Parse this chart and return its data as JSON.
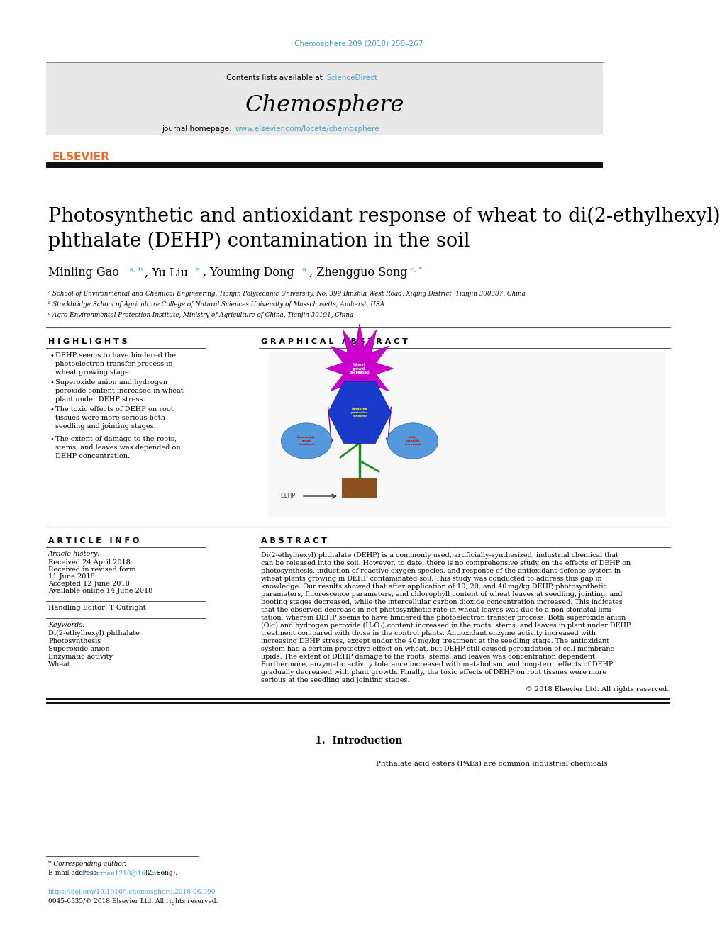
{
  "page_width": 9.92,
  "page_height": 13.23,
  "background_color": "#ffffff",
  "journal_ref": "Chemosphere 209 (2018) 258–267",
  "journal_ref_color": "#4ba3c3",
  "header_bg": "#e8e8e8",
  "header_text1": "Contents lists available at ",
  "header_sciencedirect": "ScienceDirect",
  "header_sciencedirect_color": "#4ba3c3",
  "journal_name": "Chemosphere",
  "journal_homepage_label": "journal homepage: ",
  "journal_url": "www.elsevier.com/locate/chemosphere",
  "journal_url_color": "#4ba3c3",
  "elsevier_color": "#f26524",
  "article_title": "Photosynthetic and antioxidant response of wheat to di(2-ethylhexyl)\nphthalate (DEHP) contamination in the soil",
  "affil_a": "ᵃ School of Environmental and Chemical Engineering, Tianjin Polytechnic University, No. 399 Binshui West Road, Xiqing District, Tianjin 300387, China",
  "affil_b": "ᵇ Stockbridge School of Agriculture College of Natural Sciences University of Masschusetts, Amherst, USA",
  "affil_c": "ᶜ Agro-Environmental Protection Institute, Ministry of Agriculture of China, Tianjin 30191, China",
  "highlights_title": "H I G H L I G H T S",
  "highlights": [
    "DEHP seems to have hindered the\nphotoelectron transfer process in\nwheat growing stage.",
    "Superoxide anion and hydrogen\nperoxide content increased in wheat\nplant under DEHP stress.",
    "The toxic effects of DEHP on root\ntissues were more serious both\nseedling and jointing stages.",
    "The extent of damage to the roots,\nstems, and leaves was depended on\nDEHP concentration."
  ],
  "graphical_abstract_title": "G R A P H I C A L   A B S T R A C T",
  "article_info_title": "A R T I C L E   I N F O",
  "article_history_label": "Article history:",
  "article_history": [
    "Received 24 April 2018",
    "Received in revised form",
    "11 June 2018",
    "Accepted 12 June 2018",
    "Available online 14 June 2018"
  ],
  "handling_editor": "Handling Editor: T Cutright",
  "keywords_label": "Keywords:",
  "keywords": [
    "Di(2-ethylhexyl) phthalate",
    "Photosynthesis",
    "Superoxide anion",
    "Enzymatic activity",
    "Wheat"
  ],
  "abstract_title": "A B S T R A C T",
  "abstract_lines": [
    "Di(2-ethylhexyl) phthalate (DEHP) is a commonly used, artificially-synthesized, industrial chemical that",
    "can be released into the soil. However, to date, there is no comprehensive study on the effects of DEHP on",
    "photosynthesis, induction of reactive oxygen species, and response of the antioxidant defense system in",
    "wheat plants growing in DEHP contaminated soil. This study was conducted to address this gap in",
    "knowledge. Our results showed that after application of 10, 20, and 40 mg/kg DEHP, photosynthetic",
    "parameters, fluorescence parameters, and chlorophyll content of wheat leaves at seedling, jointing, and",
    "booting stages decreased, while the intercellular carbon dioxide concentration increased. This indicates",
    "that the observed decrease in net photosynthetic rate in wheat leaves was due to a non-stomatal limi-",
    "tation, wherein DEHP seems to have hindered the photoelectron transfer process. Both superoxide anion",
    "(O₂⁻) and hydrogen peroxide (H₂O₂) content increased in the roots, stems, and leaves in plant under DEHP",
    "treatment compared with those in the control plants. Antioxidant enzyme activity increased with",
    "increasing DEHP stress, except under the 40 mg/kg treatment at the seedling stage. The antioxidant",
    "system had a certain protective effect on wheat, but DEHP still caused peroxidation of cell membrane",
    "lipids. The extent of DEHP damage to the roots, stems, and leaves was concentration dependent.",
    "Furthermore, enzymatic activity tolerance increased with metabolism, and long-term effects of DEHP",
    "gradually decreased with plant growth. Finally, the toxic effects of DEHP on root tissues were more",
    "serious at the seedling and jointing stages."
  ],
  "copyright": "© 2018 Elsevier Ltd. All rights reserved.",
  "intro_section": "1.  Introduction",
  "intro_text": "Phthalate acid esters (PAEs) are common industrial chemicals",
  "corresponding_note": "* Corresponding author.",
  "email_label": "E-mail address: ",
  "email": "forestman1218@163.com",
  "email_color": "#4ba3c3",
  "email_who": " (Z. Song).",
  "doi": "https://doi.org/10.1016/j.chemosphere.2018.06.090",
  "doi_color": "#4ba3c3",
  "issn": "0045-6535/© 2018 Elsevier Ltd. All rights reserved.",
  "divider_color": "#555555",
  "thick_divider_color": "#111111",
  "text_color": "#000000"
}
